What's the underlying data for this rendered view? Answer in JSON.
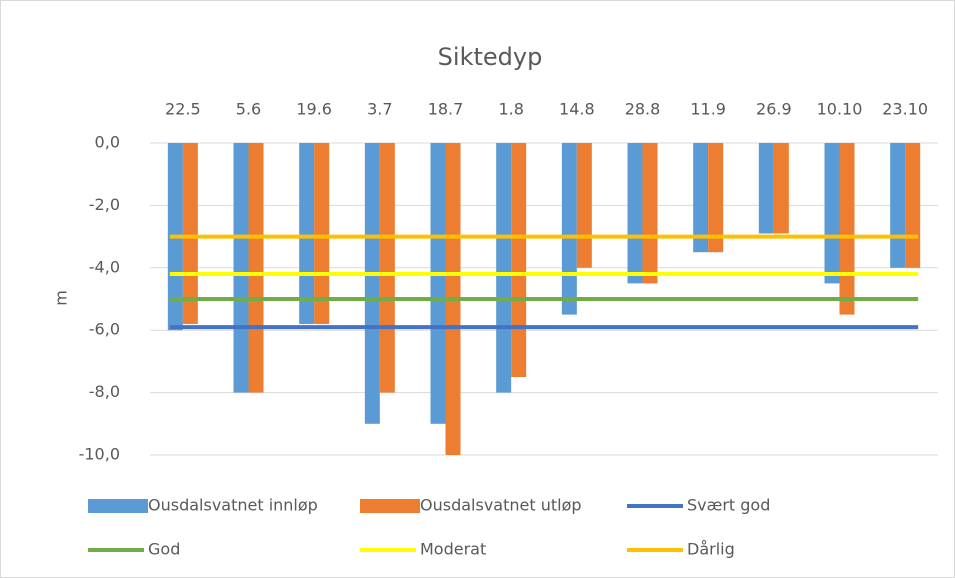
{
  "chart_data": {
    "type": "bar",
    "title": "Siktedyp",
    "y_label": "m",
    "categories": [
      "22.5",
      "5.6",
      "19.6",
      "3.7",
      "18.7",
      "1.8",
      "14.8",
      "28.8",
      "11.9",
      "26.9",
      "10.10",
      "23.10"
    ],
    "ylim": [
      -10,
      0
    ],
    "yticks": [
      {
        "value": 0,
        "label": "0,0"
      },
      {
        "value": -2,
        "label": "-2,0"
      },
      {
        "value": -4,
        "label": "-4,0"
      },
      {
        "value": -6,
        "label": "-6,0"
      },
      {
        "value": -8,
        "label": "-8,0"
      },
      {
        "value": -10,
        "label": "-10,0"
      }
    ],
    "grid": true,
    "series": [
      {
        "name": "Ousdalsvatnet innløp",
        "color": "#5b9bd5",
        "type": "bar",
        "values": [
          -6,
          -8,
          -5.8,
          -9,
          -9,
          -8,
          -5.5,
          -4.5,
          -3.5,
          -2.9,
          -4.5,
          -4
        ]
      },
      {
        "name": "Ousdalsvatnet utløp",
        "color": "#ed7d31",
        "type": "bar",
        "values": [
          -5.8,
          -8,
          -5.8,
          -8,
          -10,
          -7.5,
          -4,
          -4.5,
          -3.5,
          -2.9,
          -5.5,
          -4
        ]
      },
      {
        "name": "Svært god",
        "color": "#4472c4",
        "type": "line",
        "values": [
          -5.9,
          -5.9,
          -5.9,
          -5.9,
          -5.9,
          -5.9,
          -5.9,
          -5.9,
          -5.9,
          -5.9,
          -5.9,
          -5.9
        ]
      },
      {
        "name": "God",
        "color": "#70ad47",
        "type": "line",
        "values": [
          -5,
          -5,
          -5,
          -5,
          -5,
          -5,
          -5,
          -5,
          -5,
          -5,
          -5,
          -5
        ]
      },
      {
        "name": "Moderat",
        "color": "#ffff00",
        "type": "line",
        "values": [
          -4.2,
          -4.2,
          -4.2,
          -4.2,
          -4.2,
          -4.2,
          -4.2,
          -4.2,
          -4.2,
          -4.2,
          -4.2,
          -4.2
        ]
      },
      {
        "name": "Dårlig",
        "color": "#ffc000",
        "type": "line",
        "values": [
          -3,
          -3,
          -3,
          -3,
          -3,
          -3,
          -3,
          -3,
          -3,
          -3,
          -3,
          -3
        ]
      }
    ]
  }
}
